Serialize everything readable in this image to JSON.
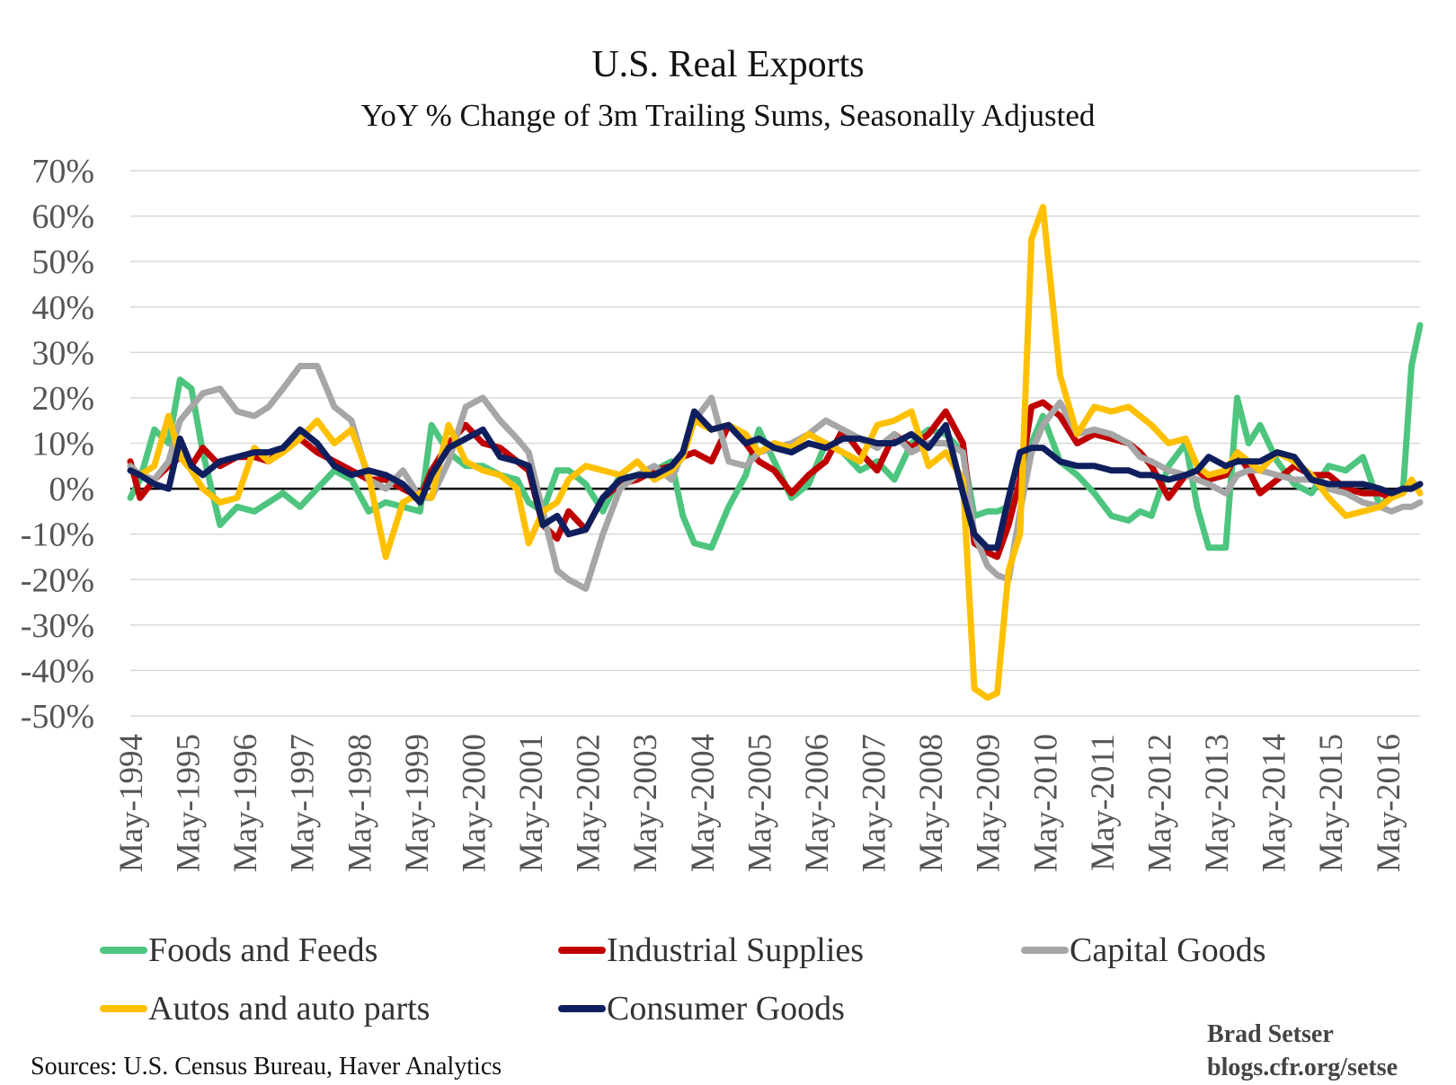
{
  "chart_data": {
    "type": "line",
    "title": "U.S. Real Exports",
    "subtitle": "YoY % Change of 3m Trailing Sums, Seasonally Adjusted",
    "xlabel": "",
    "ylabel": "",
    "ylim": [
      -50,
      70
    ],
    "y_ticks": [
      "70%",
      "60%",
      "50%",
      "40%",
      "30%",
      "20%",
      "10%",
      "0%",
      "-10%",
      "-20%",
      "-30%",
      "-40%",
      "-50%"
    ],
    "y_tick_values": [
      70,
      60,
      50,
      40,
      30,
      20,
      10,
      0,
      -10,
      -20,
      -30,
      -40,
      -50
    ],
    "x_range": [
      1994.33,
      2016.9
    ],
    "x_ticks": [
      "May-1994",
      "May-1995",
      "May-1996",
      "May-1997",
      "May-1998",
      "May-1999",
      "May-2000",
      "May-2001",
      "May-2002",
      "May-2003",
      "May-2004",
      "May-2005",
      "May-2006",
      "May-2007",
      "May-2008",
      "May-2009",
      "May-2010",
      "May-2011",
      "May-2012",
      "May-2013",
      "May-2014",
      "May-2015",
      "May-2016"
    ],
    "x_tick_values": [
      1994.33,
      1995.33,
      1996.33,
      1997.33,
      1998.33,
      1999.33,
      2000.33,
      2001.33,
      2002.33,
      2003.33,
      2004.33,
      2005.33,
      2006.33,
      2007.33,
      2008.33,
      2009.33,
      2010.33,
      2011.33,
      2012.33,
      2013.33,
      2014.33,
      2015.33,
      2016.33
    ],
    "grid": true,
    "zero_line": true,
    "legend_position": "bottom",
    "series": [
      {
        "name": "Foods and Feeds",
        "color": "#4ec57f",
        "x": [
          1994.33,
          1994.5,
          1994.75,
          1995.0,
          1995.2,
          1995.4,
          1995.6,
          1995.9,
          1996.2,
          1996.5,
          1996.75,
          1997.0,
          1997.3,
          1997.6,
          1997.9,
          1998.2,
          1998.5,
          1998.8,
          1999.1,
          1999.4,
          1999.6,
          1999.9,
          2000.2,
          2000.5,
          2000.8,
          2001.1,
          2001.3,
          2001.55,
          2001.8,
          2002.0,
          2002.3,
          2002.6,
          2002.9,
          2003.2,
          2003.5,
          2003.8,
          2004.0,
          2004.2,
          2004.5,
          2004.8,
          2005.1,
          2005.33,
          2005.6,
          2005.9,
          2006.2,
          2006.5,
          2006.8,
          2007.1,
          2007.4,
          2007.7,
          2008.0,
          2008.3,
          2008.6,
          2008.9,
          2009.1,
          2009.33,
          2009.5,
          2009.7,
          2009.9,
          2010.1,
          2010.3,
          2010.6,
          2010.9,
          2011.2,
          2011.5,
          2011.8,
          2012.0,
          2012.2,
          2012.5,
          2012.8,
          2013.0,
          2013.2,
          2013.5,
          2013.7,
          2013.9,
          2014.1,
          2014.4,
          2014.7,
          2015.0,
          2015.3,
          2015.6,
          2015.9,
          2016.2,
          2016.4,
          2016.6,
          2016.75,
          2016.9
        ],
        "y": [
          -2,
          2,
          13,
          10,
          24,
          22,
          8,
          -8,
          -4,
          -5,
          -3,
          -1,
          -4,
          0,
          4,
          2,
          -5,
          -3,
          -4,
          -5,
          14,
          8,
          5,
          5,
          3,
          2,
          -3,
          -5,
          4,
          4,
          1,
          -5,
          3,
          2,
          4,
          6,
          -6,
          -12,
          -13,
          -4,
          3,
          13,
          6,
          -2,
          1,
          10,
          8,
          4,
          6,
          2,
          10,
          13,
          12,
          8,
          -6,
          -5,
          -5,
          -4,
          0,
          10,
          16,
          6,
          3,
          -1,
          -6,
          -7,
          -5,
          -6,
          5,
          10,
          -4,
          -13,
          -13,
          20,
          10,
          14,
          6,
          1,
          -1,
          5,
          4,
          7,
          -4,
          -1,
          -1,
          27,
          36
        ]
      },
      {
        "name": "Industrial Supplies",
        "color": "#c00000",
        "x": [
          1994.33,
          1994.5,
          1994.75,
          1995.0,
          1995.2,
          1995.4,
          1995.6,
          1995.9,
          1996.2,
          1996.5,
          1996.75,
          1997.0,
          1997.3,
          1997.6,
          1997.9,
          1998.2,
          1998.5,
          1998.8,
          1999.1,
          1999.4,
          1999.6,
          1999.9,
          2000.2,
          2000.5,
          2000.8,
          2001.1,
          2001.3,
          2001.55,
          2001.8,
          2002.0,
          2002.3,
          2002.6,
          2002.9,
          2003.2,
          2003.5,
          2003.8,
          2004.0,
          2004.2,
          2004.5,
          2004.8,
          2005.1,
          2005.33,
          2005.6,
          2005.9,
          2006.2,
          2006.5,
          2006.8,
          2007.1,
          2007.4,
          2007.7,
          2008.0,
          2008.3,
          2008.6,
          2008.9,
          2009.1,
          2009.33,
          2009.5,
          2009.7,
          2009.9,
          2010.1,
          2010.3,
          2010.6,
          2010.9,
          2011.2,
          2011.5,
          2011.8,
          2012.0,
          2012.2,
          2012.5,
          2012.8,
          2013.0,
          2013.2,
          2013.5,
          2013.7,
          2013.9,
          2014.1,
          2014.4,
          2014.7,
          2015.0,
          2015.3,
          2015.6,
          2015.9,
          2016.2,
          2016.4,
          2016.6,
          2016.75,
          2016.9
        ],
        "y": [
          6,
          -2,
          2,
          5,
          7,
          5,
          9,
          5,
          7,
          7,
          6,
          9,
          11,
          8,
          6,
          4,
          2,
          2,
          0,
          -2,
          4,
          10,
          14,
          10,
          9,
          6,
          4,
          -8,
          -11,
          -5,
          -9,
          -2,
          1,
          2,
          4,
          5,
          7,
          8,
          6,
          14,
          10,
          6,
          4,
          -1,
          3,
          6,
          13,
          8,
          4,
          12,
          9,
          12,
          17,
          10,
          -12,
          -14,
          -15,
          -8,
          2,
          18,
          19,
          16,
          10,
          12,
          11,
          10,
          8,
          5,
          -2,
          3,
          4,
          2,
          3,
          8,
          4,
          -1,
          2,
          5,
          3,
          3,
          0,
          -1,
          -1,
          -2,
          0,
          0,
          1
        ]
      },
      {
        "name": "Capital Goods",
        "color": "#a6a6a6",
        "x": [
          1994.33,
          1994.5,
          1994.75,
          1995.0,
          1995.2,
          1995.4,
          1995.6,
          1995.9,
          1996.2,
          1996.5,
          1996.75,
          1997.0,
          1997.3,
          1997.6,
          1997.9,
          1998.2,
          1998.5,
          1998.8,
          1999.1,
          1999.4,
          1999.6,
          1999.9,
          2000.2,
          2000.5,
          2000.8,
          2001.1,
          2001.3,
          2001.55,
          2001.8,
          2002.0,
          2002.3,
          2002.6,
          2002.9,
          2003.2,
          2003.5,
          2003.8,
          2004.0,
          2004.2,
          2004.5,
          2004.8,
          2005.1,
          2005.33,
          2005.6,
          2005.9,
          2006.2,
          2006.5,
          2006.8,
          2007.1,
          2007.4,
          2007.7,
          2008.0,
          2008.3,
          2008.6,
          2008.9,
          2009.1,
          2009.33,
          2009.5,
          2009.7,
          2009.9,
          2010.1,
          2010.3,
          2010.6,
          2010.9,
          2011.2,
          2011.5,
          2011.8,
          2012.0,
          2012.2,
          2012.5,
          2012.8,
          2013.0,
          2013.2,
          2013.5,
          2013.7,
          2013.9,
          2014.1,
          2014.4,
          2014.7,
          2015.0,
          2015.3,
          2015.6,
          2015.9,
          2016.2,
          2016.4,
          2016.6,
          2016.75,
          2016.9
        ],
        "y": [
          5,
          3,
          2,
          6,
          15,
          18,
          21,
          22,
          17,
          16,
          18,
          22,
          27,
          27,
          18,
          15,
          2,
          0,
          4,
          -2,
          -2,
          6,
          18,
          20,
          15,
          11,
          8,
          -5,
          -18,
          -20,
          -22,
          -10,
          0,
          3,
          5,
          2,
          8,
          15,
          20,
          6,
          5,
          8,
          9,
          10,
          12,
          15,
          13,
          11,
          9,
          12,
          8,
          10,
          10,
          8,
          -10,
          -17,
          -19,
          -20,
          -5,
          8,
          14,
          19,
          12,
          13,
          12,
          10,
          7,
          6,
          4,
          3,
          2,
          1,
          -1,
          3,
          4,
          4,
          3,
          2,
          2,
          0,
          -1,
          -3,
          -4,
          -5,
          -4,
          -4,
          -3
        ]
      },
      {
        "name": "Autos and auto parts",
        "color": "#ffc000",
        "x": [
          1994.33,
          1994.5,
          1994.75,
          1995.0,
          1995.2,
          1995.4,
          1995.6,
          1995.9,
          1996.2,
          1996.5,
          1996.75,
          1997.0,
          1997.3,
          1997.6,
          1997.9,
          1998.2,
          1998.5,
          1998.8,
          1999.1,
          1999.4,
          1999.6,
          1999.9,
          2000.2,
          2000.5,
          2000.8,
          2001.1,
          2001.3,
          2001.55,
          2001.8,
          2002.0,
          2002.3,
          2002.6,
          2002.9,
          2003.2,
          2003.5,
          2003.8,
          2004.0,
          2004.2,
          2004.5,
          2004.8,
          2005.1,
          2005.33,
          2005.6,
          2005.9,
          2006.2,
          2006.5,
          2006.8,
          2007.1,
          2007.4,
          2007.7,
          2008.0,
          2008.3,
          2008.6,
          2008.9,
          2009.1,
          2009.33,
          2009.5,
          2009.7,
          2009.9,
          2010.1,
          2010.3,
          2010.6,
          2010.9,
          2011.2,
          2011.5,
          2011.8,
          2012.0,
          2012.2,
          2012.5,
          2012.8,
          2013.0,
          2013.2,
          2013.5,
          2013.7,
          2013.9,
          2014.1,
          2014.4,
          2014.7,
          2015.0,
          2015.3,
          2015.6,
          2015.9,
          2016.2,
          2016.4,
          2016.6,
          2016.75,
          2016.9
        ],
        "y": [
          4,
          3,
          5,
          16,
          7,
          4,
          0,
          -3,
          -2,
          9,
          6,
          8,
          11,
          15,
          10,
          13,
          3,
          -15,
          -3,
          -1,
          -2,
          14,
          6,
          4,
          3,
          0,
          -12,
          -5,
          -3,
          2,
          5,
          4,
          3,
          6,
          2,
          4,
          7,
          15,
          13,
          14,
          12,
          8,
          10,
          9,
          12,
          10,
          8,
          6,
          14,
          15,
          17,
          5,
          8,
          2,
          -44,
          -46,
          -45,
          -18,
          -10,
          55,
          62,
          25,
          12,
          18,
          17,
          18,
          16,
          14,
          10,
          11,
          5,
          3,
          4,
          8,
          6,
          4,
          8,
          6,
          3,
          -2,
          -6,
          -5,
          -4,
          -2,
          -1,
          2,
          -1
        ]
      },
      {
        "name": "Consumer Goods",
        "color": "#0f1f5e",
        "x": [
          1994.33,
          1994.5,
          1994.75,
          1995.0,
          1995.2,
          1995.4,
          1995.6,
          1995.9,
          1996.2,
          1996.5,
          1996.75,
          1997.0,
          1997.3,
          1997.6,
          1997.9,
          1998.2,
          1998.5,
          1998.8,
          1999.1,
          1999.4,
          1999.6,
          1999.9,
          2000.2,
          2000.5,
          2000.8,
          2001.1,
          2001.3,
          2001.55,
          2001.8,
          2002.0,
          2002.3,
          2002.6,
          2002.9,
          2003.2,
          2003.5,
          2003.8,
          2004.0,
          2004.2,
          2004.5,
          2004.8,
          2005.1,
          2005.33,
          2005.6,
          2005.9,
          2006.2,
          2006.5,
          2006.8,
          2007.1,
          2007.4,
          2007.7,
          2008.0,
          2008.3,
          2008.6,
          2008.9,
          2009.1,
          2009.33,
          2009.5,
          2009.7,
          2009.9,
          2010.1,
          2010.3,
          2010.6,
          2010.9,
          2011.2,
          2011.5,
          2011.8,
          2012.0,
          2012.2,
          2012.5,
          2012.8,
          2013.0,
          2013.2,
          2013.5,
          2013.7,
          2013.9,
          2014.1,
          2014.4,
          2014.7,
          2015.0,
          2015.3,
          2015.6,
          2015.9,
          2016.2,
          2016.4,
          2016.6,
          2016.75,
          2016.9
        ],
        "y": [
          4,
          3,
          1,
          0,
          11,
          5,
          3,
          6,
          7,
          8,
          8,
          9,
          13,
          10,
          5,
          3,
          4,
          3,
          1,
          -3,
          3,
          9,
          11,
          13,
          7,
          6,
          5,
          -8,
          -6,
          -10,
          -9,
          -2,
          2,
          3,
          3,
          5,
          8,
          17,
          13,
          14,
          10,
          11,
          9,
          8,
          10,
          9,
          11,
          11,
          10,
          10,
          12,
          9,
          14,
          -1,
          -10,
          -13,
          -13,
          -2,
          8,
          9,
          9,
          6,
          5,
          5,
          4,
          4,
          3,
          3,
          2,
          3,
          4,
          7,
          5,
          6,
          6,
          6,
          8,
          7,
          2,
          1,
          1,
          1,
          0,
          -1,
          0,
          0,
          1
        ]
      }
    ]
  },
  "source_text": "Sources: U.S. Census Bureau, Haver Analytics",
  "credit": {
    "name": "Brad Setser",
    "url": "blogs.cfr.org/setse"
  }
}
